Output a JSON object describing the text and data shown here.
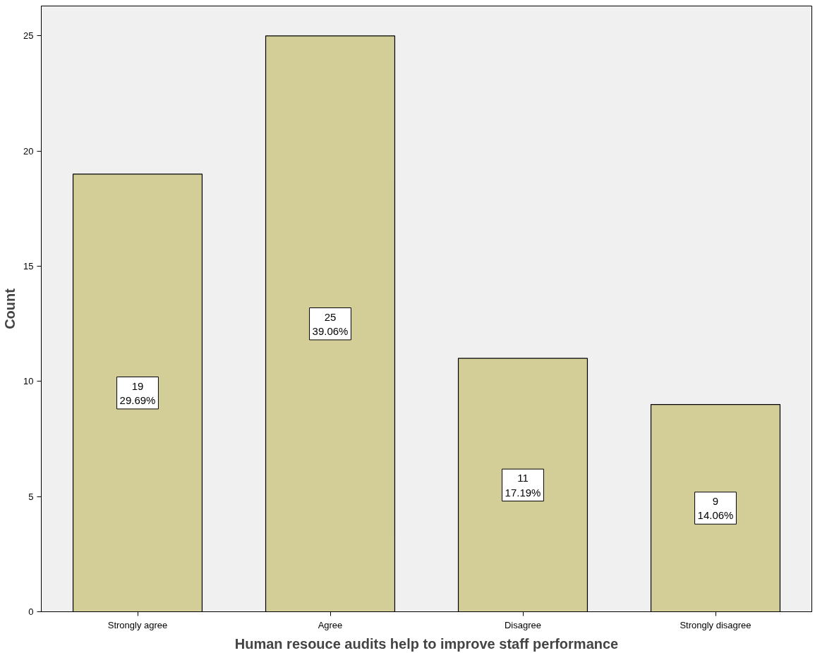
{
  "chart_data": {
    "type": "bar",
    "xlabel": "Human resouce audits help to improve staff performance",
    "ylabel": "Count",
    "categories": [
      "Strongly agree",
      "Agree",
      "Disagree",
      "Strongly disagree"
    ],
    "values": [
      19,
      25,
      11,
      9
    ],
    "value_labels": [
      "19\n29.69%",
      "25\n39.06%",
      "11\n17.19%",
      "9\n14.06%"
    ],
    "color": "#d3ce97",
    "ylim": [
      0,
      26.3
    ],
    "yticks": [
      0,
      5,
      10,
      15,
      20,
      25
    ],
    "grid": false
  }
}
